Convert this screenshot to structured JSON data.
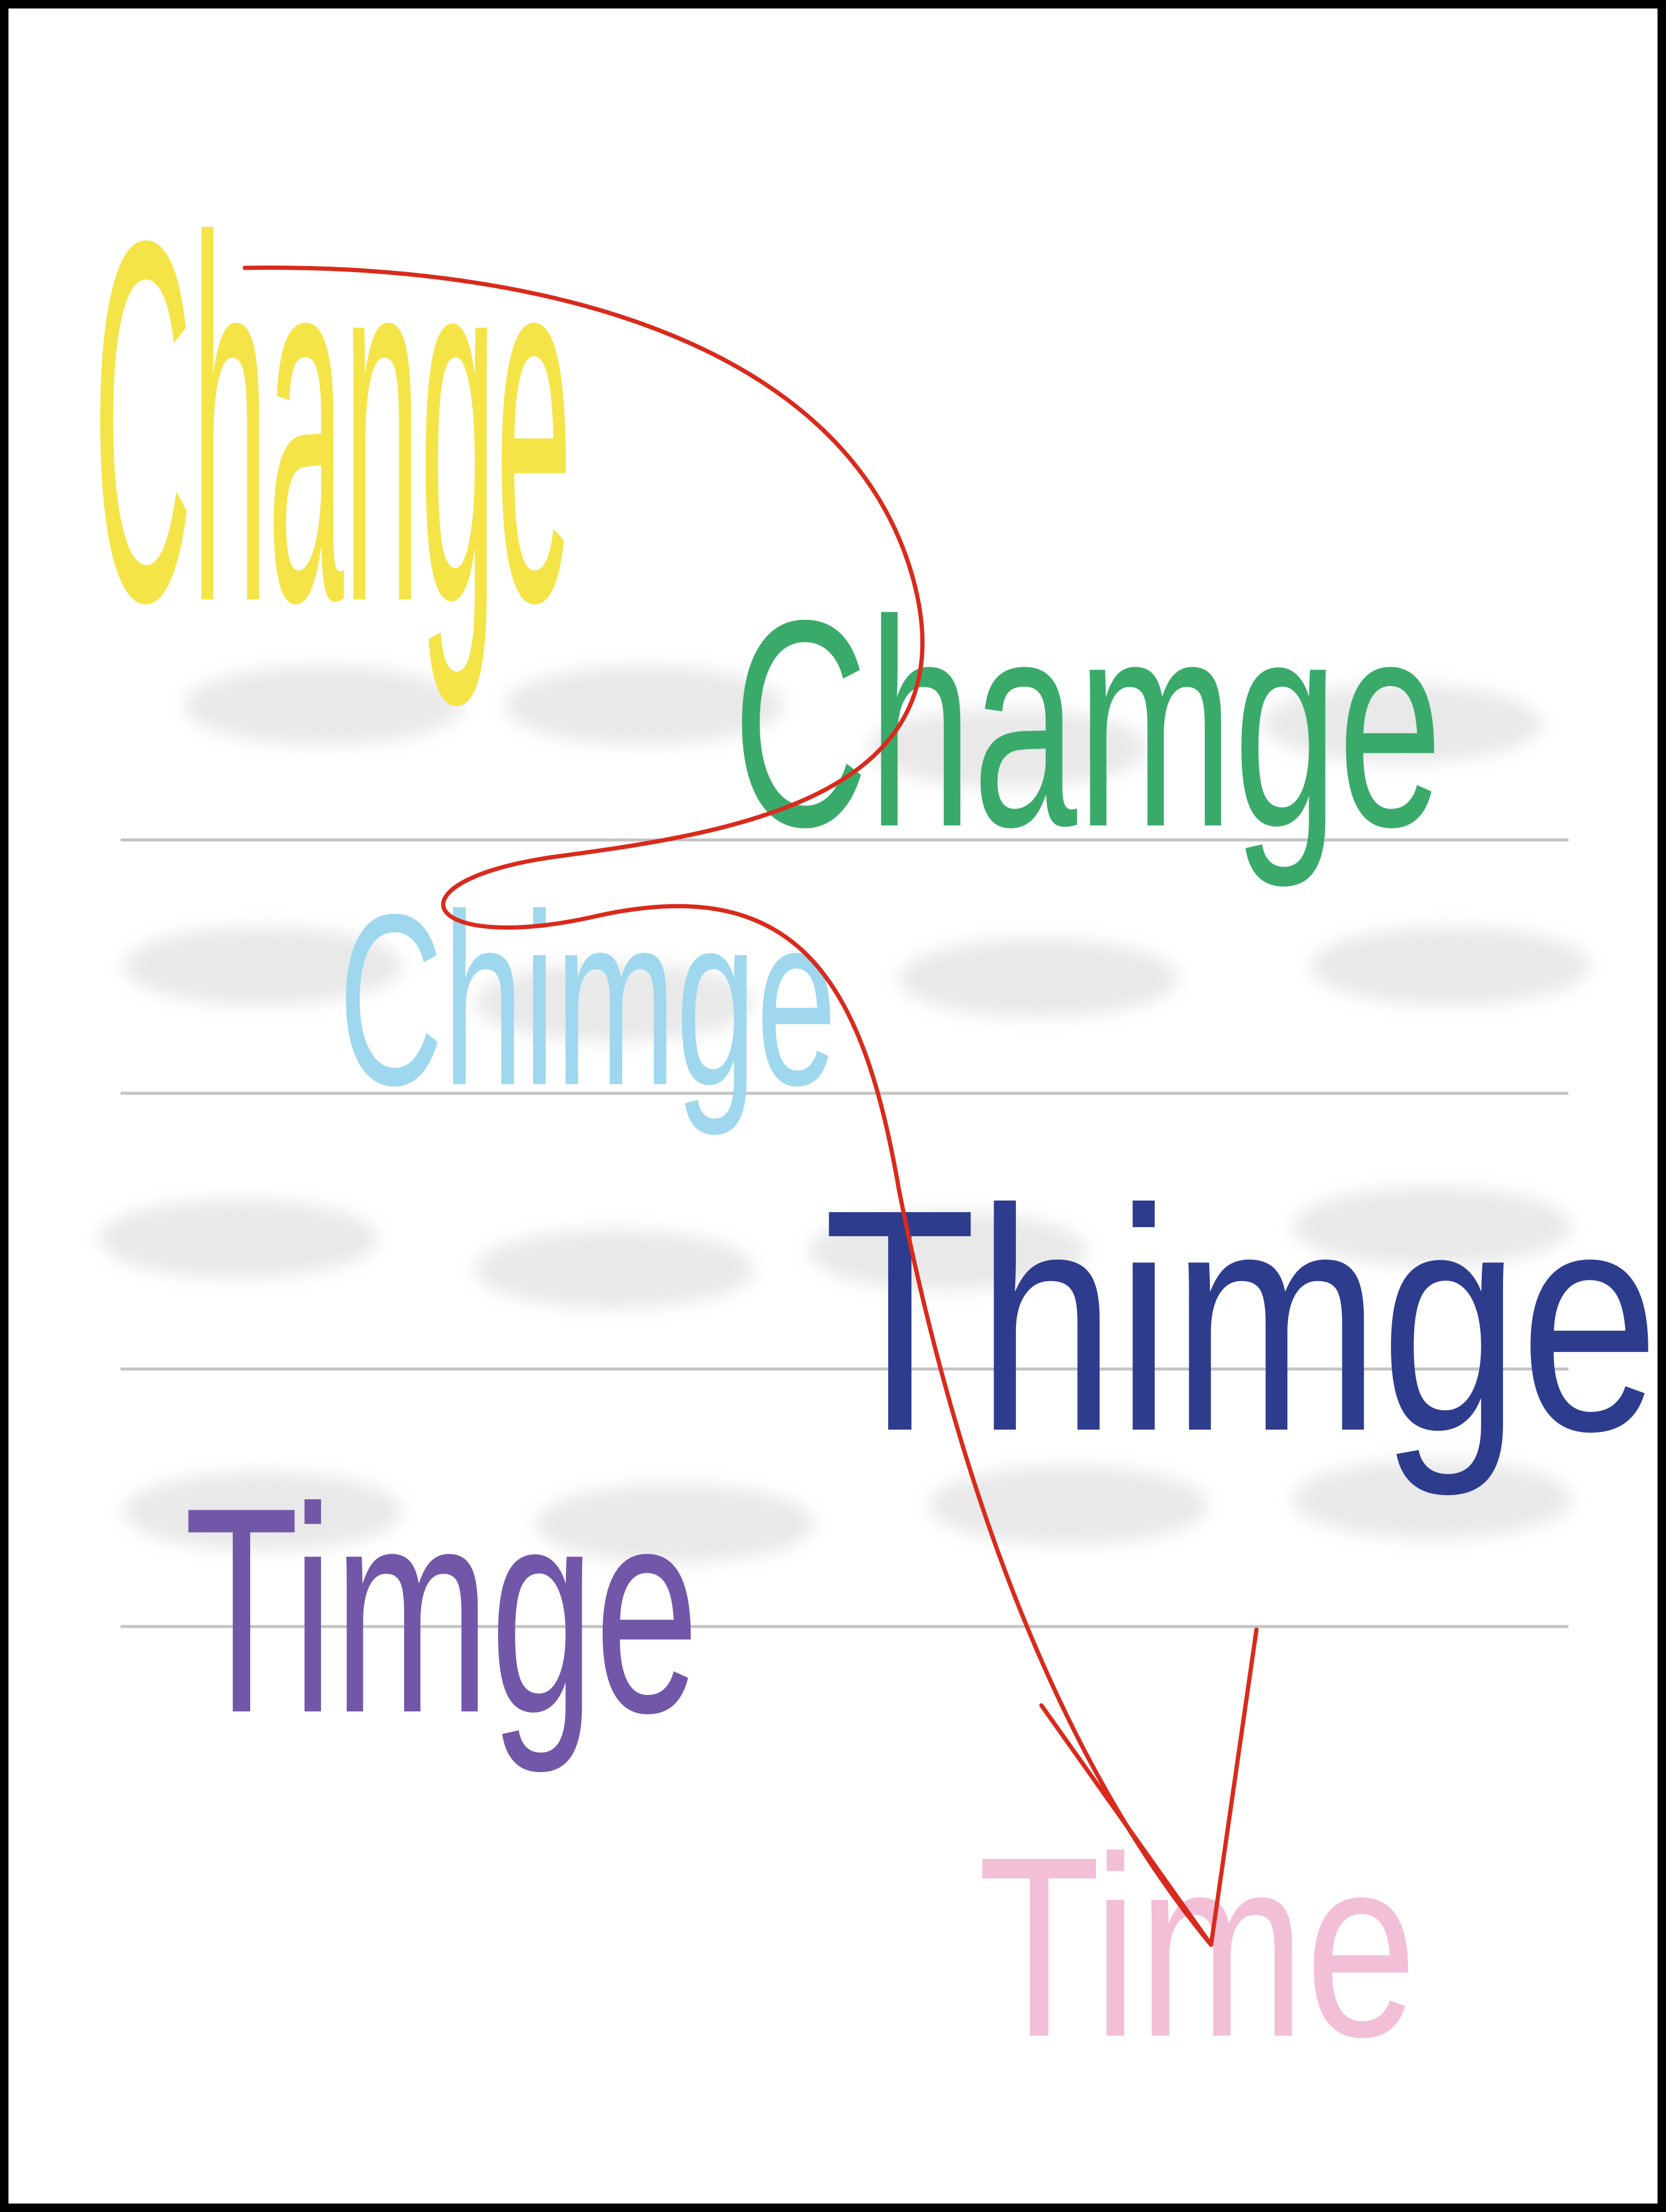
{
  "words": [
    {
      "id": "change",
      "text": "Change",
      "color": "#f5e447"
    },
    {
      "id": "chamge",
      "text": "Chamge",
      "color": "#3aaa6b"
    },
    {
      "id": "chimge",
      "text": "Chimge",
      "color": "#9fd8ee"
    },
    {
      "id": "thimge",
      "text": "Thimge",
      "color": "#2e3c8e"
    },
    {
      "id": "timge",
      "text": "Timge",
      "color": "#7257a9"
    },
    {
      "id": "time",
      "text": "Time",
      "color": "#f3bfd6"
    }
  ],
  "arrow_color": "#d92a1c",
  "guide_color": "#c4c4c4"
}
